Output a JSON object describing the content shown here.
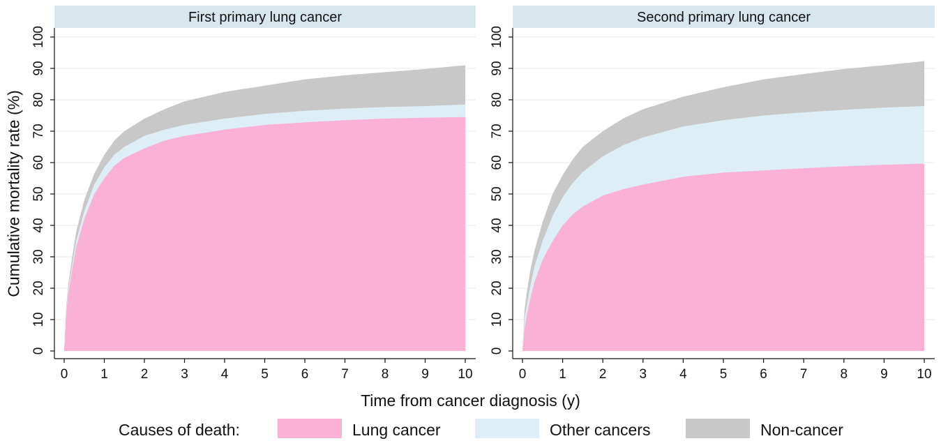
{
  "chart_data": [
    {
      "type": "area",
      "title": "First primary lung cancer",
      "ylabel": "Cumulative mortality rate (%)",
      "xlabel": "Time from cancer diagnosis (y)",
      "xlim": [
        0,
        10
      ],
      "ylim": [
        0,
        100
      ],
      "x_ticks": [
        0,
        1,
        2,
        3,
        4,
        5,
        6,
        7,
        8,
        9,
        10
      ],
      "y_ticks": [
        0,
        10,
        20,
        30,
        40,
        50,
        60,
        70,
        80,
        90,
        100
      ],
      "stacking": "cumulative",
      "grid": "horizontal",
      "x": [
        0,
        0.05,
        0.1,
        0.2,
        0.3,
        0.5,
        0.75,
        1,
        1.25,
        1.5,
        2,
        2.5,
        3,
        4,
        5,
        6,
        7,
        8,
        9,
        10
      ],
      "series": [
        {
          "name": "Lung cancer",
          "values": [
            0,
            12,
            18,
            26,
            33,
            42,
            50,
            55,
            59,
            61.5,
            64.5,
            67,
            68.5,
            70.5,
            72,
            72.8,
            73.5,
            74,
            74.3,
            74.5
          ]
        },
        {
          "name": "Other cancers",
          "values": [
            0,
            13,
            19.5,
            27.5,
            35,
            44.5,
            53,
            58.5,
            62.5,
            65,
            68.5,
            70.5,
            72,
            74,
            75.5,
            76.5,
            77.2,
            77.7,
            78,
            78.5
          ]
        },
        {
          "name": "Non-cancer",
          "values": [
            0,
            14,
            21,
            30,
            38,
            48,
            56.5,
            62.5,
            67,
            70,
            74,
            77,
            79.5,
            82.5,
            84.5,
            86.5,
            87.8,
            88.8,
            89.8,
            91
          ]
        }
      ]
    },
    {
      "type": "area",
      "title": "Second primary lung cancer",
      "ylabel": "Cumulative mortality rate (%)",
      "xlabel": "Time from cancer diagnosis (y)",
      "xlim": [
        0,
        10
      ],
      "ylim": [
        0,
        100
      ],
      "x_ticks": [
        0,
        1,
        2,
        3,
        4,
        5,
        6,
        7,
        8,
        9,
        10
      ],
      "y_ticks": [
        0,
        10,
        20,
        30,
        40,
        50,
        60,
        70,
        80,
        90,
        100
      ],
      "stacking": "cumulative",
      "grid": "horizontal",
      "x": [
        0,
        0.05,
        0.1,
        0.2,
        0.3,
        0.5,
        0.75,
        1,
        1.25,
        1.5,
        2,
        2.5,
        3,
        4,
        5,
        6,
        7,
        8,
        9,
        10
      ],
      "series": [
        {
          "name": "Lung cancer",
          "values": [
            0,
            7,
            11,
            17,
            22,
            29,
            35,
            40,
            43.5,
            46,
            49.5,
            51.5,
            53,
            55.5,
            56.8,
            57.5,
            58.2,
            58.8,
            59.3,
            59.7
          ]
        },
        {
          "name": "Other cancers",
          "values": [
            0,
            10,
            14,
            21,
            27,
            35,
            43,
            49,
            53.5,
            57,
            62,
            65.5,
            68,
            71.5,
            73.5,
            75,
            76,
            76.8,
            77.5,
            78
          ]
        },
        {
          "name": "Non-cancer",
          "values": [
            0,
            13,
            18,
            26,
            32,
            41,
            50,
            56,
            61,
            65,
            70,
            74,
            77,
            81,
            84,
            86.5,
            88.2,
            89.8,
            91,
            92.3
          ]
        }
      ]
    }
  ],
  "shared_axis_titles": {
    "x": "Time from cancer diagnosis (y)",
    "y": "Cumulative mortality rate (%)"
  },
  "legend": {
    "title": "Causes of death:",
    "placement": "bottom",
    "items": [
      {
        "label": "Lung cancer",
        "color": "#fbb1d6"
      },
      {
        "label": "Other cancers",
        "color": "#ddeef6"
      },
      {
        "label": "Non-cancer",
        "color": "#c8c8c8"
      }
    ]
  },
  "colors": {
    "strip_background": "#d8e6ed",
    "grid": "#eaeaea",
    "axis": "#111111"
  }
}
